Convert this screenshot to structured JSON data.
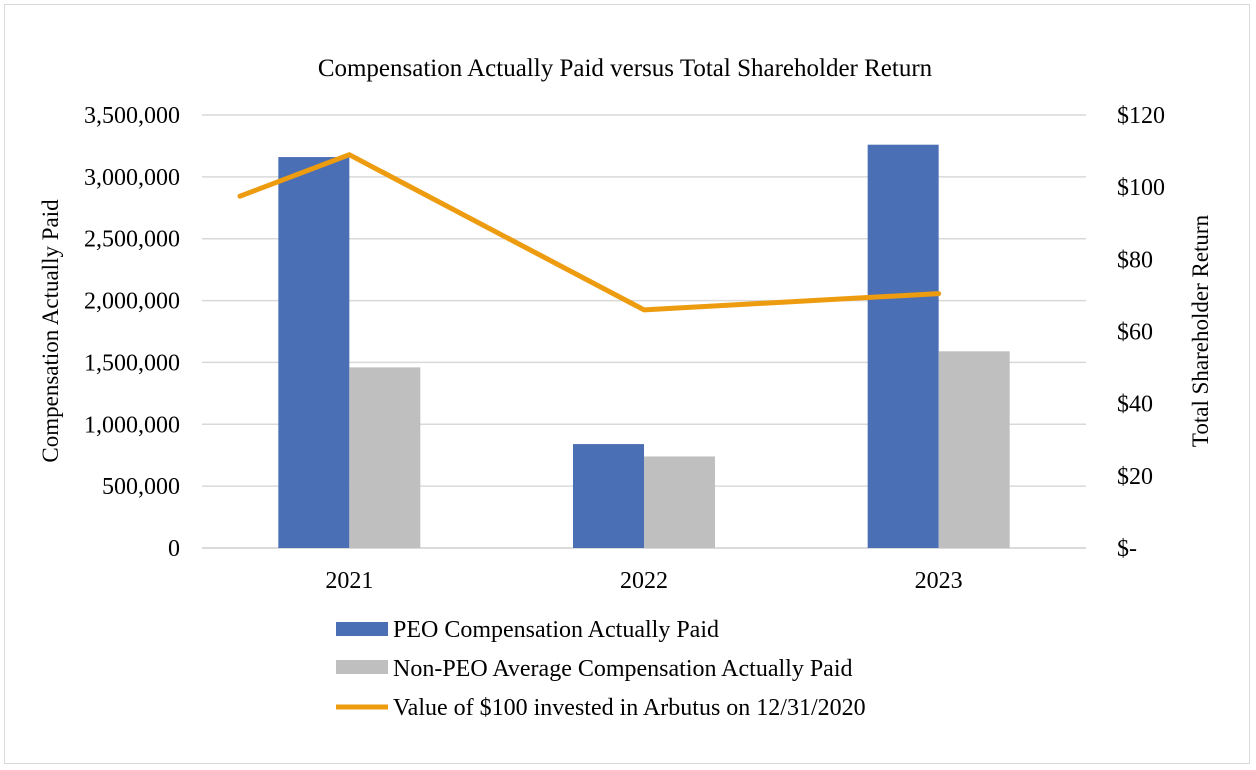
{
  "chart_data": {
    "type": "bar",
    "title": "Compensation Actually Paid versus Total Shareholder Return",
    "categories": [
      "2021",
      "2022",
      "2023"
    ],
    "ylabel": "Compensation Actually Paid",
    "y2label": "Total Shareholder Return",
    "ylim": [
      0,
      3500000
    ],
    "y2lim": [
      0,
      120
    ],
    "yticks": [
      0,
      500000,
      1000000,
      1500000,
      2000000,
      2500000,
      3000000,
      3500000
    ],
    "ytick_labels": [
      "0",
      "500,000",
      "1,000,000",
      "1,500,000",
      "2,000,000",
      "2,500,000",
      "3,000,000",
      "3,500,000"
    ],
    "y2ticks": [
      0,
      20,
      40,
      60,
      80,
      100,
      120
    ],
    "y2tick_labels": [
      "$-",
      "$20",
      "$40",
      "$60",
      "$80",
      "$100",
      "$120"
    ],
    "grid": true,
    "legend_position": "bottom",
    "series": [
      {
        "name": "PEO Compensation Actually Paid",
        "kind": "bar",
        "axis": "left",
        "color": "#4a6fb5",
        "values": [
          3160000,
          840000,
          3260000
        ]
      },
      {
        "name": "Non-PEO Average Compensation Actually Paid",
        "kind": "bar",
        "axis": "left",
        "color": "#bfbfbf",
        "values": [
          1460000,
          740000,
          1590000
        ]
      },
      {
        "name": "Value of $100 invested in Arbutus on 12/31/2020",
        "kind": "line",
        "axis": "right",
        "color": "#ed9b0f",
        "values": [
          109,
          66,
          70.5
        ],
        "start_value": 97.5
      }
    ]
  }
}
